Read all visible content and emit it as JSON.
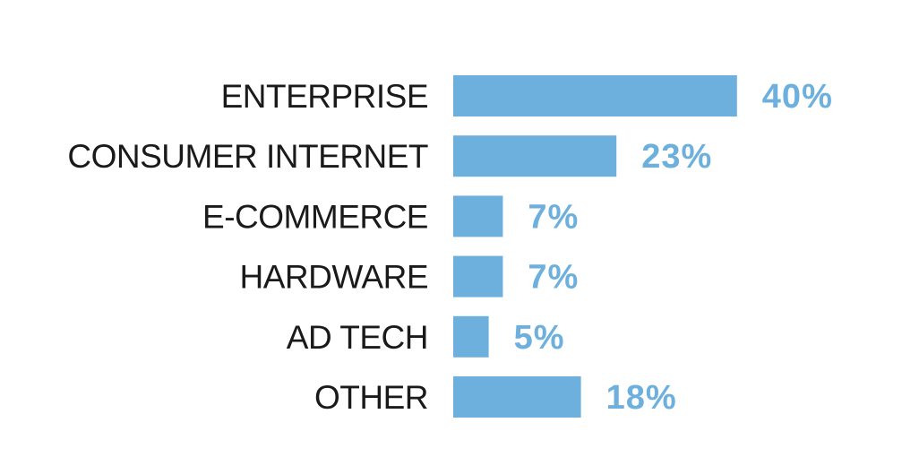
{
  "colors": {
    "bar": "#6db0de",
    "value_label": "#6db0de",
    "category_label": "#1a1a1a"
  },
  "chart_data": {
    "type": "bar",
    "orientation": "horizontal",
    "categories": [
      "ENTERPRISE",
      "CONSUMER INTERNET",
      "E-COMMERCE",
      "HARDWARE",
      "AD TECH",
      "OTHER"
    ],
    "values": [
      40,
      23,
      7,
      7,
      5,
      18
    ],
    "value_labels": [
      "40%",
      "23%",
      "7%",
      "7%",
      "5%",
      "18%"
    ],
    "unit": "%",
    "grid": false,
    "legend": "none"
  }
}
